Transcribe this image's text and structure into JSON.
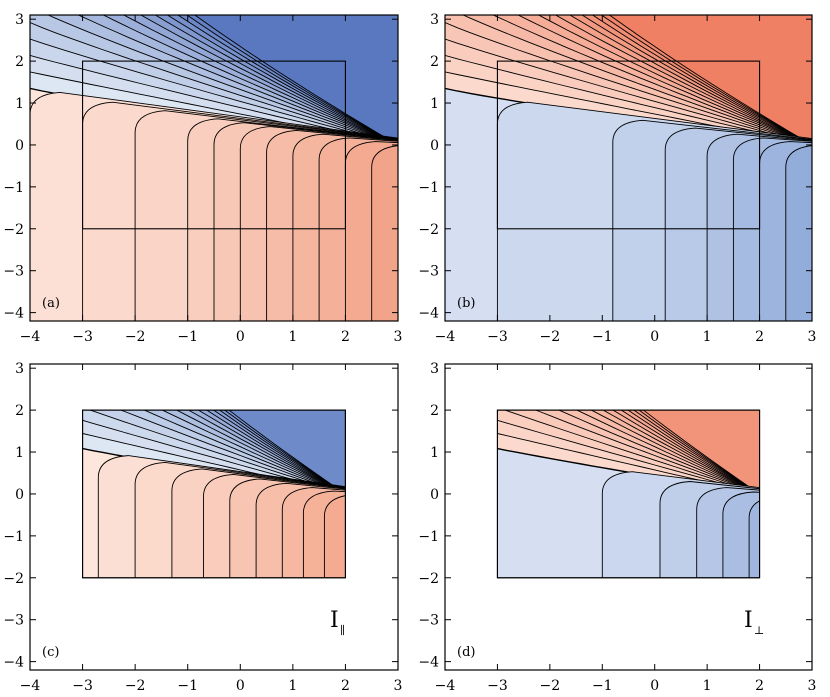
{
  "chart_data": [
    {
      "type": "heatmap",
      "panel_label": "(a)",
      "quantity": "",
      "colormap": "blue-upper-red-lower",
      "xlim": [
        -4,
        3
      ],
      "ylim": [
        -4.2,
        3.1
      ],
      "xticks": [
        -4,
        -3,
        -2,
        -1,
        0,
        1,
        2,
        3
      ],
      "yticks": [
        -4,
        -3,
        -2,
        -1,
        0,
        1,
        2,
        3
      ],
      "xtick_labels": [
        "−4",
        "−3",
        "−2",
        "−1",
        "0",
        "1",
        "2",
        "3"
      ],
      "ytick_labels": [
        "−4",
        "−3",
        "−2",
        "−1",
        "0",
        "1",
        "2",
        "3"
      ],
      "domain": [
        -4,
        3,
        -4.2,
        3.1
      ],
      "box": [
        -3,
        2,
        -2,
        2
      ],
      "contour_levels": 14,
      "lower_levels": [
        -4,
        -3,
        -2,
        -1,
        -0.5,
        0,
        0.5,
        1,
        1.5,
        2,
        2.5
      ],
      "colors": {
        "upper_light": "#dde6f3",
        "upper_dark": "#5a78c0",
        "lower_light": "#fde6dc",
        "lower_dark": "#f2a48a"
      }
    },
    {
      "type": "heatmap",
      "panel_label": "(b)",
      "quantity": "",
      "colormap": "red-upper-blue-lower",
      "xlim": [
        -4,
        3
      ],
      "ylim": [
        -4.2,
        3.1
      ],
      "xticks": [
        -4,
        -3,
        -2,
        -1,
        0,
        1,
        2,
        3
      ],
      "yticks": [
        -4,
        -3,
        -2,
        -1,
        0,
        1,
        2,
        3
      ],
      "xtick_labels": [
        "−4",
        "−3",
        "−2",
        "−1",
        "0",
        "1",
        "2",
        "3"
      ],
      "ytick_labels": [
        "−4",
        "−3",
        "−2",
        "−1",
        "0",
        "1",
        "2",
        "3"
      ],
      "domain": [
        -4,
        3,
        -4.2,
        3.1
      ],
      "box": [
        -3,
        2,
        -2,
        2
      ],
      "contour_levels": 14,
      "lower_levels": [
        -3,
        -0.8,
        0.2,
        1,
        1.5,
        2,
        2.5
      ],
      "colors": {
        "upper_light": "#fbd9cc",
        "upper_dark": "#ef8064",
        "lower_light": "#d5dff1",
        "lower_dark": "#93addb"
      }
    },
    {
      "type": "heatmap",
      "panel_label": "(c)",
      "quantity": "I",
      "quantity_sub": "∥",
      "colormap": "blue-upper-red-lower",
      "xlim": [
        -4,
        3
      ],
      "ylim": [
        -4.2,
        3.1
      ],
      "xticks": [
        -4,
        -3,
        -2,
        -1,
        0,
        1,
        2,
        3
      ],
      "yticks": [
        -4,
        -3,
        -2,
        -1,
        0,
        1,
        2,
        3
      ],
      "xtick_labels": [
        "−4",
        "−3",
        "−2",
        "−1",
        "0",
        "1",
        "2",
        "3"
      ],
      "ytick_labels": [
        "−4",
        "−3",
        "−2",
        "−1",
        "0",
        "1",
        "2",
        "3"
      ],
      "domain": [
        -3,
        2,
        -2,
        2
      ],
      "box": [
        -3,
        2,
        -2,
        2
      ],
      "contour_levels": 14,
      "lower_levels": [
        -2.7,
        -2,
        -1.3,
        -0.7,
        -0.2,
        0.3,
        0.8,
        1.2,
        1.6
      ],
      "colors": {
        "upper_light": "#dde6f3",
        "upper_dark": "#6e8ac9",
        "lower_light": "#fde6dc",
        "lower_dark": "#f4ab91"
      }
    },
    {
      "type": "heatmap",
      "panel_label": "(d)",
      "quantity": "I",
      "quantity_sub": "⊥",
      "colormap": "red-upper-blue-lower",
      "xlim": [
        -4,
        3
      ],
      "ylim": [
        -4.2,
        3.1
      ],
      "xticks": [
        -4,
        -3,
        -2,
        -1,
        0,
        1,
        2,
        3
      ],
      "yticks": [
        -4,
        -3,
        -2,
        -1,
        0,
        1,
        2,
        3
      ],
      "xtick_labels": [
        "−4",
        "−3",
        "−2",
        "−1",
        "0",
        "1",
        "2",
        "3"
      ],
      "ytick_labels": [
        "−4",
        "−3",
        "−2",
        "−1",
        "0",
        "1",
        "2",
        "3"
      ],
      "domain": [
        -3,
        2,
        -2,
        2
      ],
      "box": [
        -3,
        2,
        -2,
        2
      ],
      "contour_levels": 14,
      "lower_levels": [
        -1,
        0.1,
        0.8,
        1.3,
        1.8
      ],
      "colors": {
        "upper_light": "#fbd9cc",
        "upper_dark": "#f1947a",
        "lower_light": "#d5dff1",
        "lower_dark": "#9fb6e0"
      }
    }
  ]
}
